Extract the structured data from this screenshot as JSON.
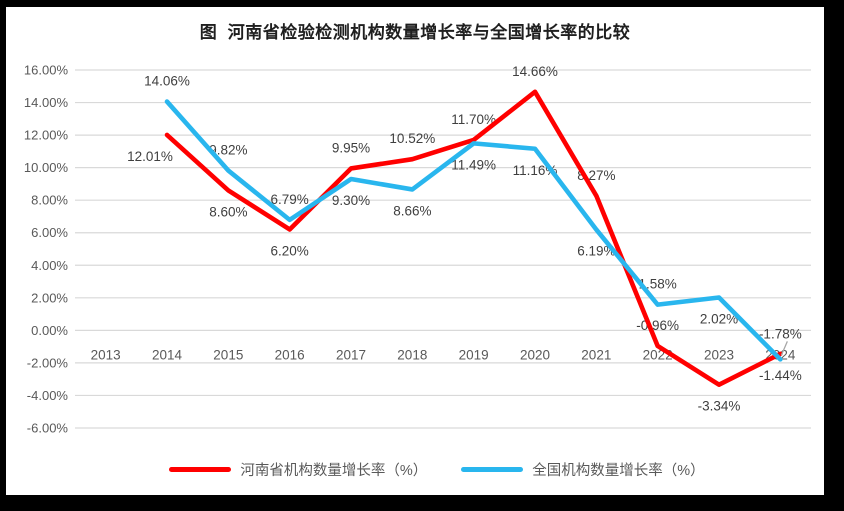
{
  "frame": {
    "background": "#000000",
    "canvas_background": "#ffffff"
  },
  "title": "图  河南省检验检测机构数量增长率与全国增长率的比较",
  "legend": [
    {
      "label": "河南省机构数量增长率（%）",
      "color": "#FF0000"
    },
    {
      "label": "全国机构数量增长率（%）",
      "color": "#29B6EE"
    }
  ],
  "chart_data": {
    "type": "line",
    "title": "图  河南省检验检测机构数量增长率与全国增长率的比较",
    "xlabel": "",
    "ylabel": "",
    "categories": [
      "2013",
      "2014",
      "2015",
      "2016",
      "2017",
      "2018",
      "2019",
      "2020",
      "2021",
      "2022",
      "2023",
      "2024"
    ],
    "series": [
      {
        "name": "河南省机构数量增长率（%）",
        "color": "#FF0000",
        "values": [
          null,
          12.01,
          8.6,
          6.2,
          9.95,
          10.52,
          11.7,
          14.66,
          8.27,
          -0.96,
          -3.34,
          -1.44
        ],
        "labels": [
          "",
          "12.01%",
          "8.60%",
          "6.20%",
          "9.95%",
          "10.52%",
          "11.70%",
          "14.66%",
          "8.27%",
          "-0.96%",
          "-3.34%",
          "-1.44%"
        ],
        "label_placement": [
          "",
          "below-left",
          "below",
          "below",
          "above",
          "above",
          "above",
          "above",
          "above",
          "above",
          "below",
          "below"
        ]
      },
      {
        "name": "全国机构数量增长率（%）",
        "color": "#29B6EE",
        "values": [
          null,
          14.06,
          9.82,
          6.79,
          9.3,
          8.66,
          11.49,
          11.16,
          6.19,
          1.58,
          2.02,
          -1.78
        ],
        "labels": [
          "",
          "14.06%",
          "9.82%",
          "6.79%",
          "9.30%",
          "8.66%",
          "11.49%",
          "11.16%",
          "6.19%",
          "1.58%",
          "2.02%",
          "-1.78%"
        ],
        "label_placement": [
          "",
          "above",
          "above",
          "above",
          "below",
          "below",
          "below",
          "below",
          "below",
          "above",
          "below",
          "above-leader"
        ]
      }
    ],
    "ylim": [
      -6,
      16
    ],
    "y_ticks": [
      {
        "value": 16,
        "label": "16.00%"
      },
      {
        "value": 14,
        "label": "14.00%"
      },
      {
        "value": 12,
        "label": "12.00%"
      },
      {
        "value": 10,
        "label": "10.00%"
      },
      {
        "value": 8,
        "label": "8.00%"
      },
      {
        "value": 6,
        "label": "6.00%"
      },
      {
        "value": 4,
        "label": "4.00%"
      },
      {
        "value": 2,
        "label": "2.00%"
      },
      {
        "value": 0,
        "label": "0.00%"
      },
      {
        "value": -2,
        "label": "-2.00%"
      },
      {
        "value": -4,
        "label": "-4.00%"
      },
      {
        "value": -6,
        "label": "-6.00%"
      }
    ],
    "grid": true,
    "legend_position": "bottom",
    "gridline_color": "#D9D9D9",
    "axis_label_color": "#595959",
    "data_label_color": "#3F3F3F",
    "leader_line_color": "#A6A6A6"
  }
}
